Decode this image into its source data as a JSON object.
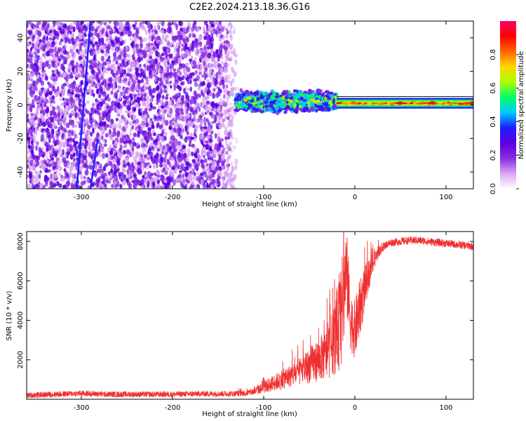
{
  "title": "C2E2.2024.213.18.36.G16",
  "chart_data": [
    {
      "type": "heatmap",
      "xlabel": "Height of straight line (km)",
      "ylabel": "Frequency (Hz)",
      "xlim": [
        -360,
        130
      ],
      "ylim": [
        -50,
        50
      ],
      "xticks": [
        -300,
        -200,
        -100,
        0,
        100
      ],
      "yticks": [
        -40,
        -20,
        0,
        20,
        40
      ],
      "colorbar": {
        "label": "Normalized spectral amplitude",
        "range": [
          0,
          1
        ],
        "ticks": [
          0.0,
          0.2,
          0.4,
          0.6,
          0.8
        ],
        "tick_labels": [
          "0.0",
          "0.2",
          "0.4",
          "0.6",
          "0.8"
        ],
        "colormap": [
          "#ffffff",
          "#d9a6f2",
          "#8a2be2",
          "#5a00e0",
          "#1e1eff",
          "#00c8ff",
          "#00ff66",
          "#aaff00",
          "#ffd700",
          "#ff6600",
          "#ff0000",
          "#ff0066"
        ]
      },
      "regions": {
        "noise_band": {
          "x_from": -360,
          "x_to": -130,
          "level": 0.2
        },
        "oscillation_band": {
          "x_from": -130,
          "x_to": -20,
          "freq_center": 2,
          "freq_width": 7,
          "level": 0.5
        },
        "carrier_band": {
          "x_from": -20,
          "x_to": 130,
          "freq_center": 1,
          "freq_width": 2,
          "level": 0.9
        },
        "streak_lines": [
          {
            "x_start": -305,
            "f_start": -50,
            "x_end": -290,
            "f_end": 50
          },
          {
            "x_start": -290,
            "f_start": -50,
            "x_end": -282,
            "f_end": -20
          }
        ]
      }
    },
    {
      "type": "line",
      "xlabel": "Height of straight line (km)",
      "ylabel": "SNR (10 * v/v)",
      "xlim": [
        -360,
        130
      ],
      "ylim": [
        0,
        8500
      ],
      "xticks": [
        -300,
        -200,
        -100,
        0,
        100
      ],
      "yticks": [
        2000,
        4000,
        6000,
        8000
      ],
      "color": "#f03030",
      "series": [
        {
          "x": [
            -360,
            -330,
            -300,
            -270,
            -240,
            -200,
            -170,
            -140,
            -120,
            -110,
            -100,
            -90,
            -80,
            -70,
            -60,
            -50,
            -40,
            -30,
            -25,
            -20,
            -15,
            -12,
            -10,
            -8,
            -5,
            0,
            5,
            10,
            15,
            20,
            25,
            30,
            35,
            40,
            50,
            60,
            70,
            80,
            90,
            100,
            110,
            120,
            130
          ],
          "y": [
            200,
            250,
            300,
            250,
            250,
            250,
            280,
            280,
            300,
            400,
            600,
            800,
            1000,
            1200,
            1400,
            1700,
            2000,
            2300,
            2800,
            3300,
            4200,
            5500,
            6500,
            6000,
            4000,
            3500,
            4500,
            5500,
            6300,
            6900,
            7400,
            7700,
            7850,
            7950,
            8000,
            8050,
            8050,
            8000,
            7950,
            7900,
            7850,
            7800,
            7750
          ],
          "noise": [
            150,
            150,
            150,
            150,
            150,
            150,
            150,
            150,
            150,
            200,
            300,
            400,
            500,
            600,
            700,
            900,
            1100,
            1300,
            1600,
            2000,
            2600,
            2800,
            2000,
            2200,
            1500,
            1500,
            1500,
            1200,
            800,
            500,
            300,
            250,
            200,
            200,
            200,
            200,
            200,
            200,
            200,
            200,
            200,
            200,
            200
          ]
        }
      ]
    }
  ]
}
